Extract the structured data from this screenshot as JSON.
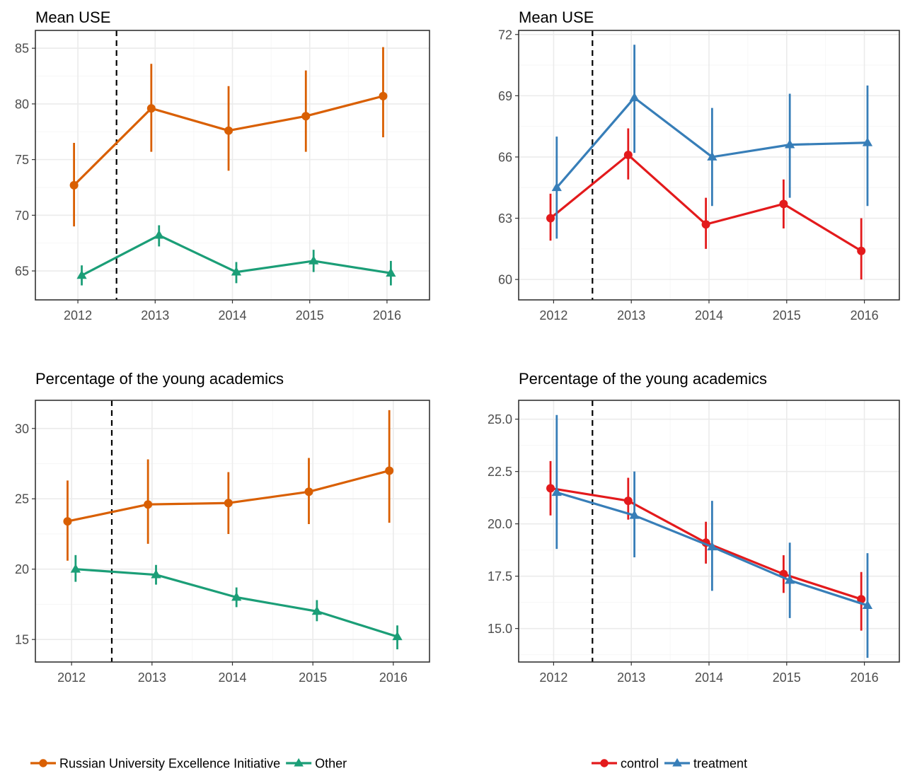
{
  "colors": {
    "rui": "#d95f02",
    "other": "#1b9e77",
    "control": "#e31a1c",
    "treatment": "#377eb8"
  },
  "legends": [
    {
      "items": [
        {
          "name": "Russian University Excellence Initiative",
          "color": "#d95f02",
          "marker": "circle"
        },
        {
          "name": "Other",
          "color": "#1b9e77",
          "marker": "triangle"
        }
      ]
    },
    {
      "items": [
        {
          "name": "control",
          "color": "#e31a1c",
          "marker": "circle"
        },
        {
          "name": "treatment",
          "color": "#377eb8",
          "marker": "triangle"
        }
      ]
    }
  ],
  "chart_data": [
    {
      "type": "line",
      "title": "Mean USE",
      "xlabel": "",
      "ylabel": "",
      "x": [
        2012,
        2013,
        2014,
        2015,
        2016
      ],
      "xlim": [
        2011.45,
        2016.55
      ],
      "ylim": [
        62.4,
        86.6
      ],
      "yticks": [
        65,
        70,
        75,
        80,
        85
      ],
      "ytick_labels": [
        "65",
        "70",
        "75",
        "80",
        "85"
      ],
      "cutoff_x": 2012.5,
      "grid": true,
      "error_bars": true,
      "series": [
        {
          "name": "Russian University Excellence Initiative",
          "color": "#d95f02",
          "marker": "circle",
          "offset": -0.05,
          "values": [
            72.7,
            79.6,
            77.6,
            78.9,
            80.7
          ],
          "lower": [
            69.0,
            75.7,
            74.0,
            75.7,
            77.0
          ],
          "upper": [
            76.5,
            83.6,
            81.6,
            83.0,
            85.1
          ]
        },
        {
          "name": "Other",
          "color": "#1b9e77",
          "marker": "triangle",
          "offset": 0.05,
          "values": [
            64.6,
            68.2,
            64.9,
            65.9,
            64.8
          ],
          "lower": [
            63.7,
            67.2,
            63.9,
            64.9,
            63.7
          ],
          "upper": [
            65.5,
            69.1,
            65.8,
            66.9,
            65.9
          ]
        }
      ]
    },
    {
      "type": "line",
      "title": "Mean USE",
      "xlabel": "",
      "ylabel": "",
      "x": [
        2012,
        2013,
        2014,
        2015,
        2016
      ],
      "xlim": [
        2011.55,
        2016.45
      ],
      "ylim": [
        59.0,
        72.2
      ],
      "yticks": [
        60,
        63,
        66,
        69,
        72
      ],
      "ytick_labels": [
        "60",
        "63",
        "66",
        "69",
        "72"
      ],
      "cutoff_x": 2012.5,
      "grid": true,
      "error_bars": true,
      "series": [
        {
          "name": "control",
          "color": "#e31a1c",
          "marker": "circle",
          "offset": -0.04,
          "values": [
            63.0,
            66.1,
            62.7,
            63.7,
            61.4
          ],
          "lower": [
            61.9,
            64.9,
            61.5,
            62.5,
            60.0
          ],
          "upper": [
            64.2,
            67.4,
            64.0,
            64.9,
            63.0
          ]
        },
        {
          "name": "treatment",
          "color": "#377eb8",
          "marker": "triangle",
          "offset": 0.04,
          "values": [
            64.5,
            68.9,
            66.0,
            66.6,
            66.7
          ],
          "lower": [
            62.0,
            66.2,
            63.6,
            64.0,
            63.6
          ],
          "upper": [
            67.0,
            71.5,
            68.4,
            69.1,
            69.5
          ]
        }
      ]
    },
    {
      "type": "line",
      "title": "Percentage of the young academics",
      "xlabel": "",
      "ylabel": "",
      "x": [
        2012,
        2013,
        2014,
        2015,
        2016
      ],
      "xlim": [
        2011.55,
        2016.45
      ],
      "ylim": [
        13.4,
        32.0
      ],
      "yticks": [
        15,
        20,
        25,
        30
      ],
      "ytick_labels": [
        "15",
        "20",
        "25",
        "30"
      ],
      "cutoff_x": 2012.5,
      "grid": true,
      "error_bars": true,
      "series": [
        {
          "name": "Russian University Excellence Initiative",
          "color": "#d95f02",
          "marker": "circle",
          "offset": -0.05,
          "values": [
            23.4,
            24.6,
            24.7,
            25.5,
            27.0
          ],
          "lower": [
            20.6,
            21.8,
            22.5,
            23.2,
            23.3
          ],
          "upper": [
            26.3,
            27.8,
            26.9,
            27.9,
            31.3
          ]
        },
        {
          "name": "Other",
          "color": "#1b9e77",
          "marker": "triangle",
          "offset": 0.05,
          "values": [
            20.0,
            19.6,
            18.0,
            17.0,
            15.2
          ],
          "lower": [
            19.1,
            18.9,
            17.3,
            16.3,
            14.3
          ],
          "upper": [
            21.0,
            20.3,
            18.7,
            17.8,
            16.0
          ]
        }
      ]
    },
    {
      "type": "line",
      "title": "Percentage of the young academics",
      "xlabel": "",
      "ylabel": "",
      "x": [
        2012,
        2013,
        2014,
        2015,
        2016
      ],
      "xlim": [
        2011.55,
        2016.45
      ],
      "ylim": [
        13.4,
        25.9
      ],
      "yticks": [
        15.0,
        17.5,
        20.0,
        22.5,
        25.0
      ],
      "ytick_labels": [
        "15.0",
        "17.5",
        "20.0",
        "22.5",
        "25.0"
      ],
      "cutoff_x": 2012.5,
      "grid": true,
      "error_bars": true,
      "series": [
        {
          "name": "control",
          "color": "#e31a1c",
          "marker": "circle",
          "offset": -0.04,
          "values": [
            21.7,
            21.1,
            19.1,
            17.6,
            16.4
          ],
          "lower": [
            20.4,
            20.2,
            18.1,
            16.7,
            14.9
          ],
          "upper": [
            23.0,
            22.2,
            20.1,
            18.5,
            17.7
          ]
        },
        {
          "name": "treatment",
          "color": "#377eb8",
          "marker": "triangle",
          "offset": 0.04,
          "values": [
            21.5,
            20.4,
            18.9,
            17.3,
            16.1
          ],
          "lower": [
            18.8,
            18.4,
            16.8,
            15.5,
            13.6
          ],
          "upper": [
            25.2,
            22.5,
            21.1,
            19.1,
            18.6
          ]
        }
      ]
    }
  ]
}
